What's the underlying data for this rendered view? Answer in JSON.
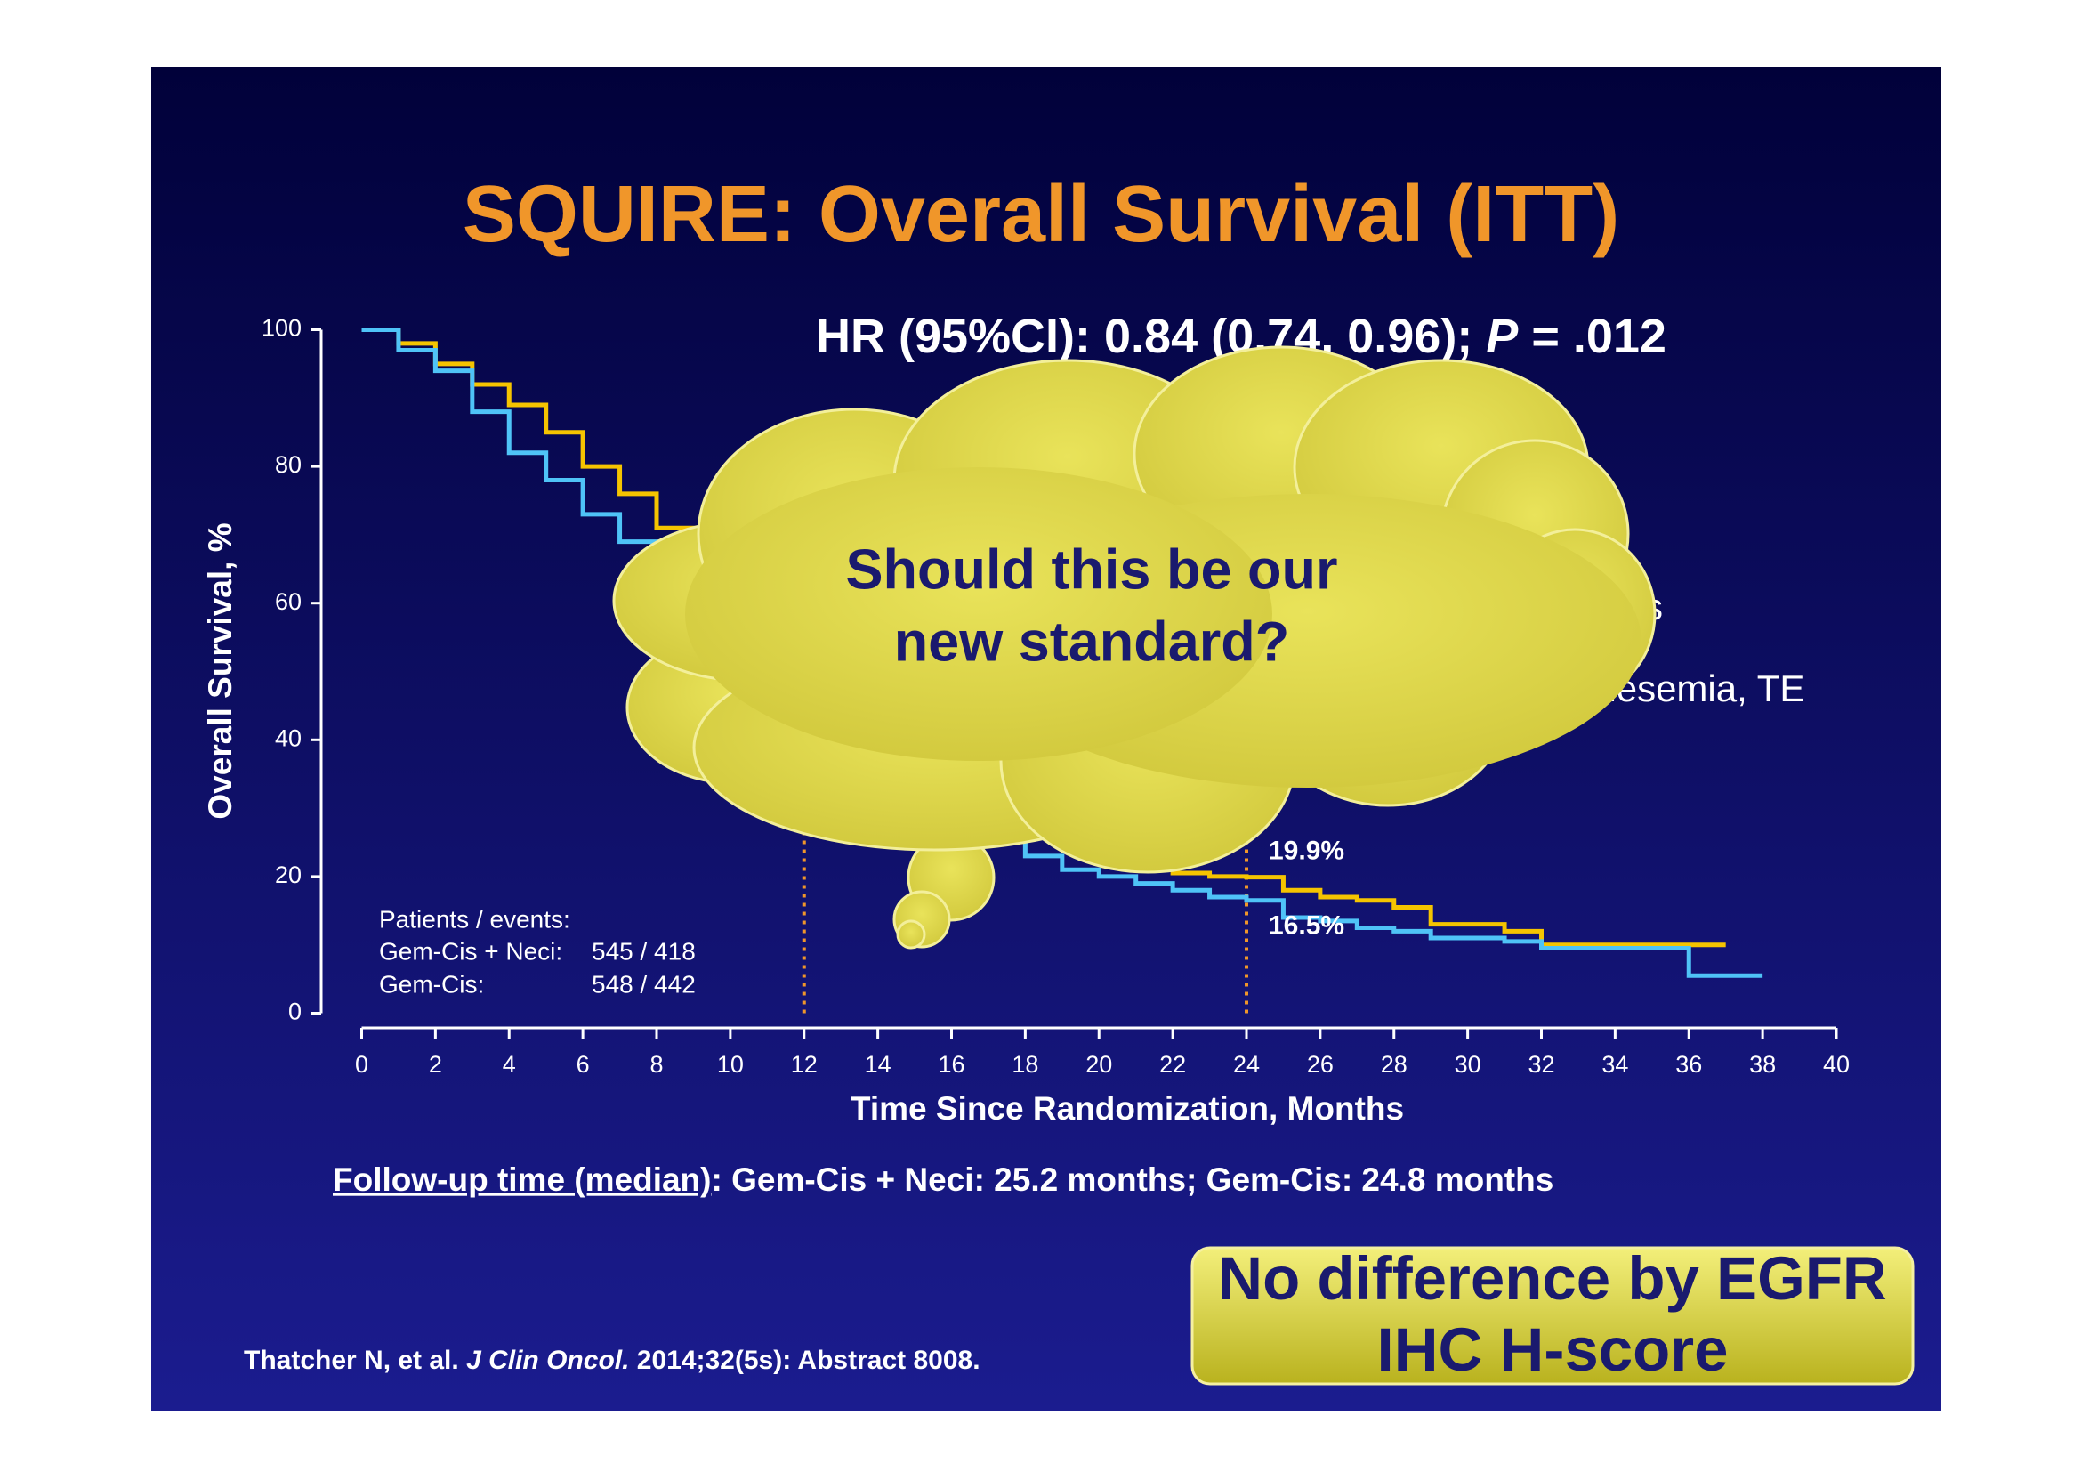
{
  "chart_data": {
    "type": "line",
    "step": true,
    "title": "SQUIRE: Overall Survival (ITT)",
    "hr_text": [
      "HR (95%CI): 0.84 (0.74, 0.96); ",
      "P",
      " = .012"
    ],
    "xlabel": "Time Since Randomization, Months",
    "ylabel": "Overall Survival, %",
    "x": [
      0,
      1,
      2,
      3,
      4,
      5,
      6,
      7,
      8,
      9,
      10,
      11,
      12,
      13,
      14,
      15,
      16,
      17,
      18,
      19,
      20,
      21,
      22,
      23,
      24,
      25,
      26,
      27,
      28,
      29,
      30,
      31,
      32,
      33,
      34,
      35,
      36,
      37,
      38
    ],
    "series": [
      {
        "color": "#f5c400",
        "values": [
          100,
          98,
          95,
          92,
          89,
          85,
          80,
          76,
          71,
          66,
          60,
          54,
          49,
          44,
          40,
          35,
          31,
          28,
          26,
          24,
          22,
          21,
          20.5,
          20,
          19.9,
          18,
          17,
          16.5,
          15.5,
          13,
          13,
          12,
          10,
          10,
          10,
          10,
          10,
          10,
          null
        ]
      },
      {
        "color": "#4fc3f7",
        "values": [
          100,
          97,
          94,
          88,
          82,
          78,
          73,
          69,
          65,
          60,
          55,
          50,
          45,
          40,
          35,
          32,
          30,
          26,
          23,
          21,
          20,
          19,
          18,
          17,
          16.5,
          14,
          13.5,
          12.5,
          12,
          11,
          11,
          10.5,
          9.5,
          9.5,
          9.5,
          9.5,
          5.5,
          5.5,
          5.5
        ]
      }
    ],
    "xlim": [
      0,
      40
    ],
    "ylim": [
      0,
      100
    ],
    "xticks": [
      0,
      2,
      4,
      6,
      8,
      10,
      12,
      14,
      16,
      18,
      20,
      22,
      24,
      26,
      28,
      30,
      32,
      34,
      36,
      38,
      40
    ],
    "yticks": [
      0,
      20,
      40,
      60,
      80,
      100
    ],
    "reference_lines": {
      "color": "#f0962a",
      "x": [
        12,
        24
      ]
    },
    "annotations": [
      {
        "text": "19.9%",
        "x": 24,
        "y": 19.9
      },
      {
        "text": "16.5%",
        "x": 24,
        "y": 16.5
      }
    ],
    "patients_table": {
      "title": "Patients / events:",
      "rows": [
        [
          "Gem-Cis + Neci:",
          "545 / 418"
        ],
        [
          "Gem-Cis:",
          "548 / 442"
        ]
      ]
    }
  },
  "hidden_fragments": [
    "s",
    "gnesemia, TE"
  ],
  "cloud_text": [
    "Should this be our",
    "new standard?"
  ],
  "follow_up": [
    "Follow-up time (median)",
    ": Gem-Cis + Neci: 25.2 months; Gem-Cis: 24.8 months"
  ],
  "citation": [
    "Thatcher N, et al. ",
    "J Clin Oncol.",
    " 2014;32(5s): Abstract 8008."
  ],
  "callout_box": [
    "No difference by EGFR",
    "IHC H-score"
  ]
}
